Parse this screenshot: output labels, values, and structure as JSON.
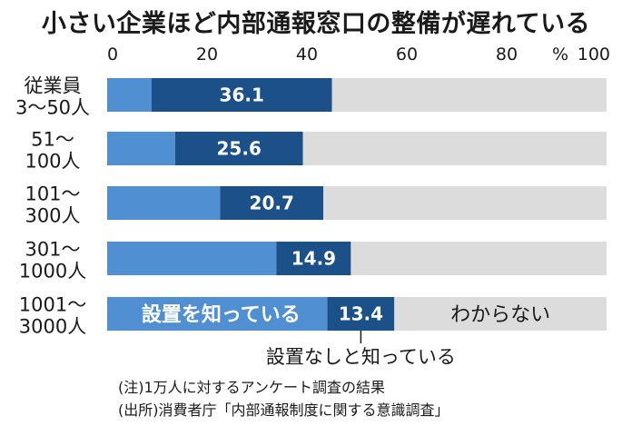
{
  "title": "小さい企業ほど内部通報窓口の整備が遅れている",
  "chart_data": {
    "type": "bar",
    "orientation": "horizontal",
    "stacked": true,
    "categories": [
      [
        "従業員",
        "3〜50人"
      ],
      [
        "51〜",
        "100人"
      ],
      [
        "101〜",
        "300人"
      ],
      [
        "301〜",
        "1000人"
      ],
      [
        "1001〜",
        "3000人"
      ]
    ],
    "series": [
      {
        "name": "設置を知っている",
        "values": [
          8.9,
          13.6,
          22.6,
          33.9,
          44.1
        ],
        "color": "#4f8fd2"
      },
      {
        "name": "設置なしと知っている",
        "values": [
          36.1,
          25.6,
          20.7,
          14.9,
          13.4
        ],
        "color": "#1b5089"
      },
      {
        "name": "わからない",
        "values": [
          55.0,
          60.8,
          56.7,
          51.2,
          42.5
        ],
        "color": "#dcdcdc"
      }
    ],
    "value_labels": [
      "36.1",
      "25.6",
      "20.7",
      "14.9",
      "13.4"
    ],
    "x_ticks": [
      0,
      20,
      40,
      60,
      80,
      100
    ],
    "x_unit": "%",
    "xlim": [
      0,
      100
    ],
    "grid": false
  },
  "notes": [
    "(注)1万人に対するアンケート調査の結果",
    "(出所)消費者庁「内部通報制度に関する意識調査」"
  ]
}
